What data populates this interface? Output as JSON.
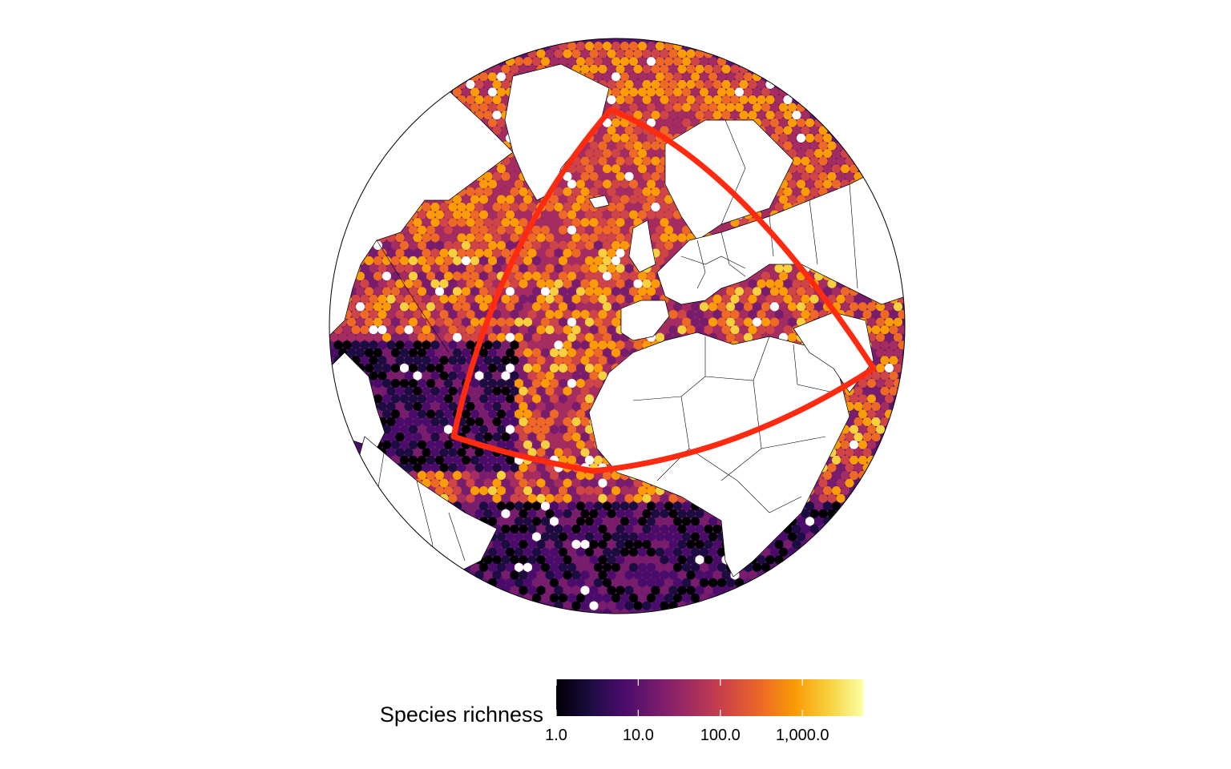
{
  "map": {
    "projection": "orthographic",
    "region": "Atlantic Ocean, Europe, Africa",
    "fill_variable": "species richness (hexagonal grid)",
    "land_fill": "#ffffff",
    "border_color": "#000000",
    "outline_color": "#000000",
    "highlight_polygon_color": "#ff2a10",
    "no_data_color": "#ffffff"
  },
  "legend": {
    "title": "Species richness",
    "scale": "log10",
    "palette": "inferno",
    "colors": [
      "#000004",
      "#1b0c41",
      "#4a0c6b",
      "#781c6d",
      "#a52c60",
      "#cf4446",
      "#ed6925",
      "#fb9b06",
      "#f7d13d",
      "#fcffa4"
    ],
    "ticks": [
      {
        "value": 1,
        "label": "1.0"
      },
      {
        "value": 10,
        "label": "10.0"
      },
      {
        "value": 100,
        "label": "100.0"
      },
      {
        "value": 1000,
        "label": "1,000.0"
      }
    ],
    "min": 1,
    "max": 5500
  }
}
